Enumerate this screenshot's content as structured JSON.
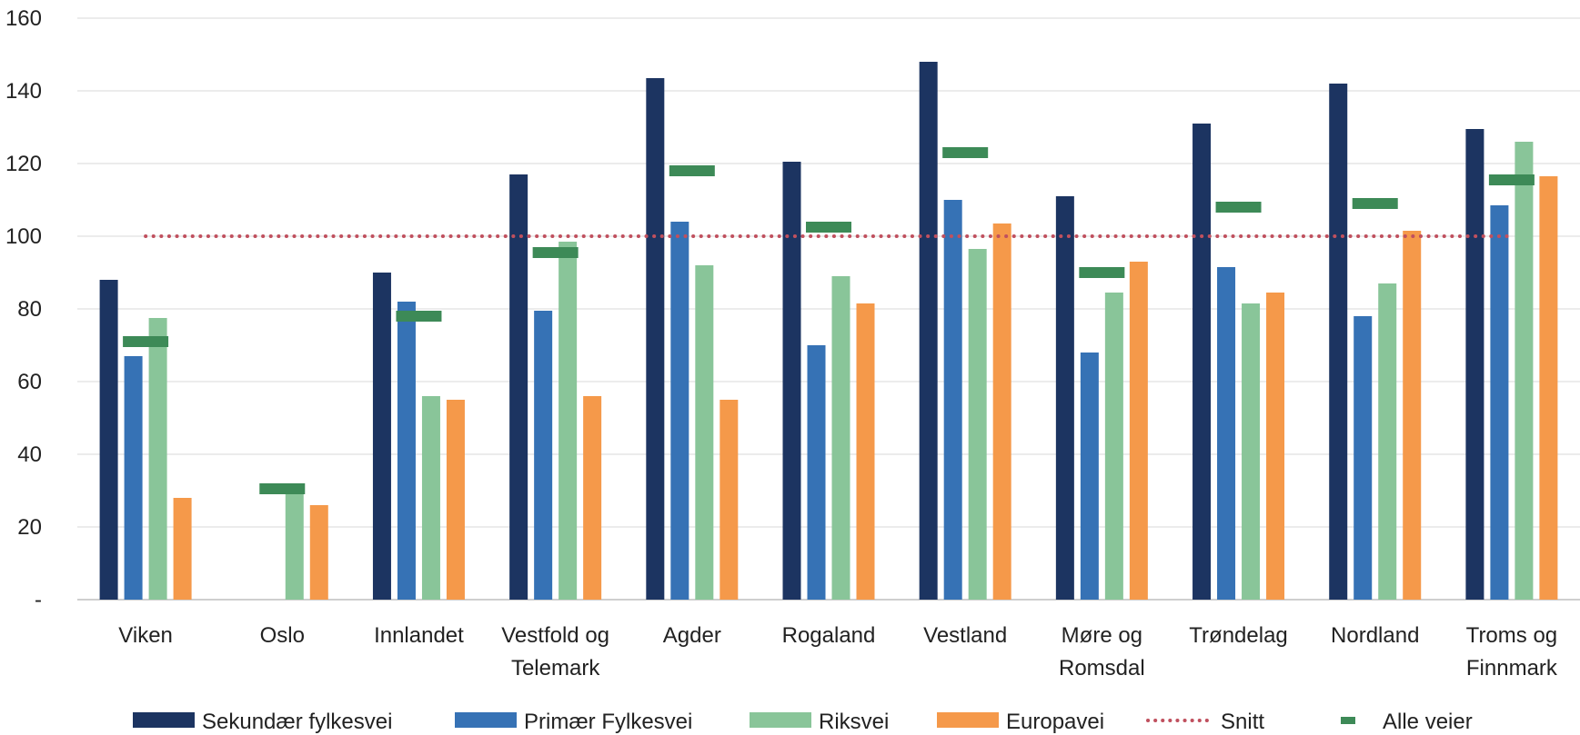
{
  "chart_data": {
    "type": "bar",
    "categories": [
      [
        "Viken"
      ],
      [
        "Oslo"
      ],
      [
        "Innlandet"
      ],
      [
        "Vestfold og",
        "Telemark"
      ],
      [
        "Agder"
      ],
      [
        "Rogaland"
      ],
      [
        "Vestland"
      ],
      [
        "Møre og",
        "Romsdal"
      ],
      [
        "Trøndelag"
      ],
      [
        "Nordland"
      ],
      [
        "Troms og",
        "Finnmark"
      ]
    ],
    "series": [
      {
        "name": "Sekundær fylkesvei",
        "color": "#1c3461",
        "values": [
          88,
          null,
          90,
          117,
          143.5,
          120.5,
          148,
          111,
          131,
          142,
          129.5
        ]
      },
      {
        "name": "Primær Fylkesvei",
        "color": "#3672b5",
        "values": [
          67,
          null,
          82,
          79.5,
          104,
          70,
          110,
          68,
          91.5,
          78,
          108.5
        ]
      },
      {
        "name": "Riksvei",
        "color": "#89c599",
        "values": [
          77.5,
          31,
          56,
          98.5,
          92,
          89,
          96.5,
          84.5,
          81.5,
          87,
          126
        ]
      },
      {
        "name": "Europavei",
        "color": "#f5994a",
        "values": [
          28,
          26,
          55,
          56,
          55,
          81.5,
          103.5,
          93,
          84.5,
          101.5,
          116.5
        ]
      }
    ],
    "all_roads": {
      "name": "Alle veier",
      "color": "#3d8a57",
      "values": [
        71,
        30.5,
        78,
        95.5,
        118,
        102.5,
        123,
        90,
        108,
        109,
        115.5
      ]
    },
    "average": {
      "name": "Snitt",
      "color": "#c0505e",
      "value": 100
    },
    "ylim": [
      0,
      160
    ],
    "yticks": [
      {
        "value": 0,
        "label": "-"
      },
      {
        "value": 20,
        "label": "20"
      },
      {
        "value": 40,
        "label": "40"
      },
      {
        "value": 60,
        "label": "60"
      },
      {
        "value": 80,
        "label": "80"
      },
      {
        "value": 100,
        "label": "100"
      },
      {
        "value": 120,
        "label": "120"
      },
      {
        "value": 140,
        "label": "140"
      },
      {
        "value": 160,
        "label": "160"
      }
    ],
    "grid": true,
    "legend": "bottom",
    "title": "",
    "xlabel": "",
    "ylabel": ""
  }
}
